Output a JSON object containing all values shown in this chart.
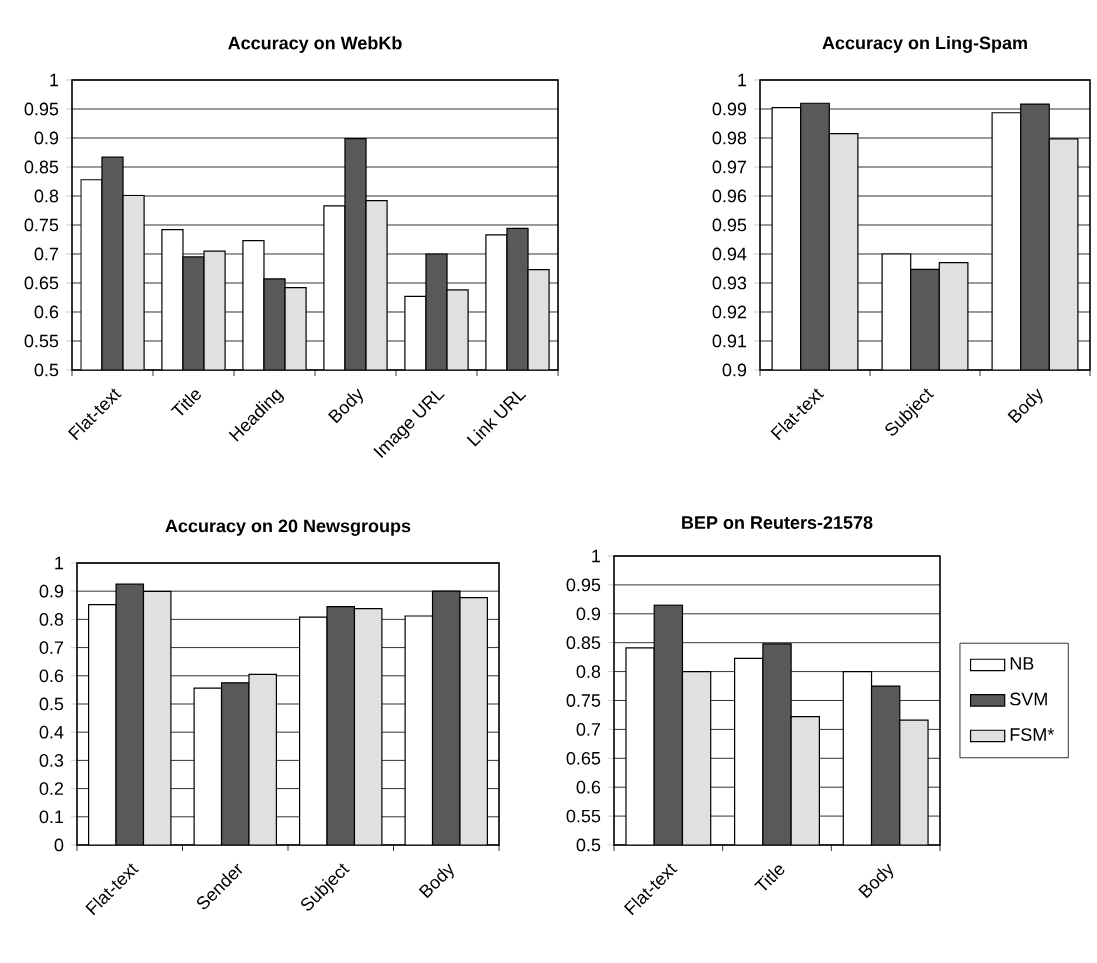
{
  "chart_data": [
    {
      "type": "bar",
      "title": "Accuracy on WebKb",
      "categories": [
        "Flat-text",
        "Title",
        "Heading",
        "Body",
        "Image URL",
        "Link URL"
      ],
      "series": [
        {
          "color": "#ffffff",
          "values": [
            0.828,
            0.742,
            0.723,
            0.783,
            0.627,
            0.733
          ]
        },
        {
          "color": "#595959",
          "values": [
            0.867,
            0.695,
            0.657,
            0.899,
            0.7,
            0.744
          ]
        },
        {
          "color": "#e0e0e0",
          "values": [
            0.801,
            0.705,
            0.642,
            0.792,
            0.638,
            0.673
          ]
        }
      ],
      "ylim": [
        0.5,
        1
      ],
      "yticks": [
        0.5,
        0.55,
        0.6,
        0.65,
        0.7,
        0.75,
        0.8,
        0.85,
        0.9,
        0.95,
        1
      ],
      "grid": "y",
      "legend": false
    },
    {
      "type": "bar",
      "title": "Accuracy on Ling-Spam",
      "categories": [
        "Flat-text",
        "Subject",
        "Body"
      ],
      "series": [
        {
          "color": "#ffffff",
          "values": [
            0.9905,
            0.94,
            0.9887
          ]
        },
        {
          "color": "#595959",
          "values": [
            0.992,
            0.9347,
            0.9917
          ]
        },
        {
          "color": "#e0e0e0",
          "values": [
            0.9815,
            0.937,
            0.9797
          ]
        }
      ],
      "ylim": [
        0.9,
        1
      ],
      "yticks": [
        0.9,
        0.91,
        0.92,
        0.93,
        0.94,
        0.95,
        0.96,
        0.97,
        0.98,
        0.99,
        1
      ],
      "grid": "y",
      "legend": false
    },
    {
      "type": "bar",
      "title": "Accuracy on 20 Newsgroups",
      "categories": [
        "Flat-text",
        "Sender",
        "Subject",
        "Body"
      ],
      "series": [
        {
          "color": "#ffffff",
          "values": [
            0.852,
            0.556,
            0.808,
            0.812
          ]
        },
        {
          "color": "#595959",
          "values": [
            0.925,
            0.575,
            0.845,
            0.9
          ]
        },
        {
          "color": "#e0e0e0",
          "values": [
            0.899,
            0.605,
            0.838,
            0.877
          ]
        }
      ],
      "ylim": [
        0,
        1
      ],
      "yticks": [
        0,
        0.1,
        0.2,
        0.3,
        0.4,
        0.5,
        0.6,
        0.7,
        0.8,
        0.9,
        1
      ],
      "grid": "y",
      "legend": false
    },
    {
      "type": "bar",
      "title": "BEP on Reuters-21578",
      "categories": [
        "Flat-text",
        "Title",
        "Body"
      ],
      "series": [
        {
          "name": "NB",
          "color": "#ffffff",
          "values": [
            0.841,
            0.823,
            0.8
          ]
        },
        {
          "name": "SVM",
          "color": "#595959",
          "values": [
            0.915,
            0.848,
            0.775
          ]
        },
        {
          "name": "FSM*",
          "color": "#e0e0e0",
          "values": [
            0.8,
            0.722,
            0.716
          ]
        }
      ],
      "ylim": [
        0.5,
        1
      ],
      "yticks": [
        0.5,
        0.55,
        0.6,
        0.65,
        0.7,
        0.75,
        0.8,
        0.85,
        0.9,
        0.95,
        1
      ],
      "grid": "y",
      "legend": "right"
    }
  ]
}
